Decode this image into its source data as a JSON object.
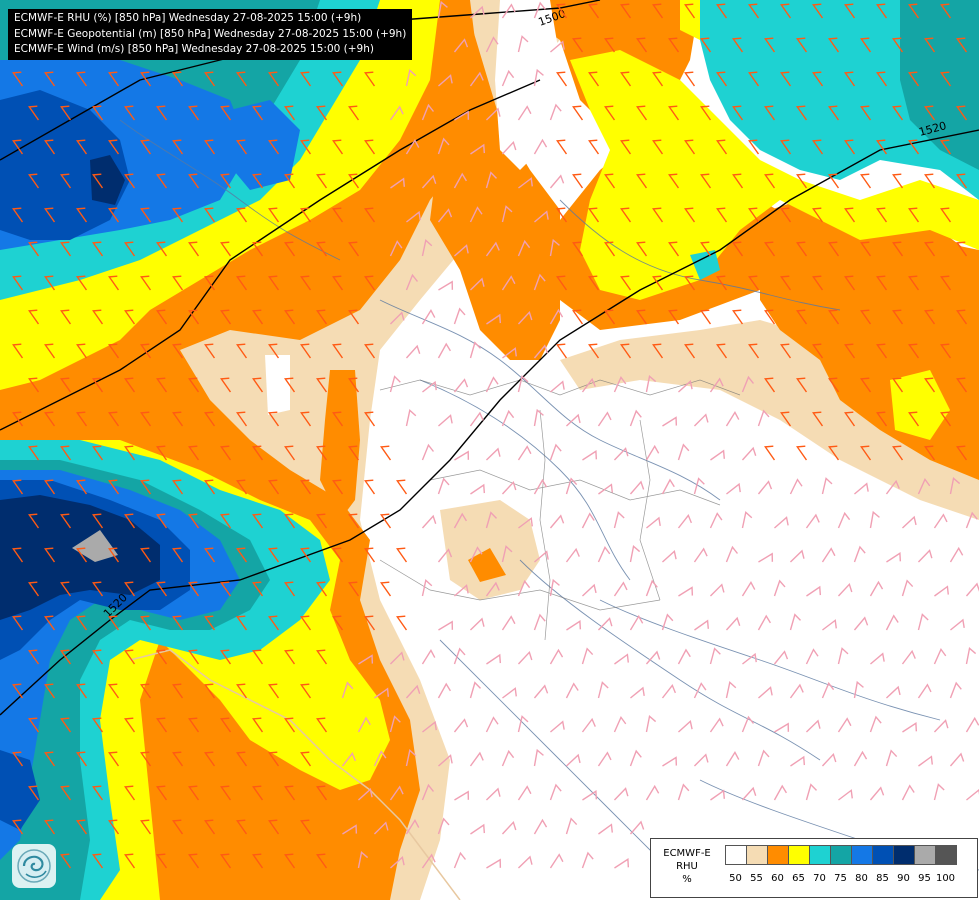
{
  "header": {
    "line1": "ECMWF-E RHU (%) [850 hPa] Wednesday 27-08-2025 15:00 (+9h)",
    "line2": "ECMWF-E Geopotential (m) [850 hPa] Wednesday 27-08-2025 15:00 (+9h)",
    "line3": "ECMWF-E Wind (m/s) [850 hPa] Wednesday 27-08-2025 15:00 (+9h)"
  },
  "contours": {
    "c1500": "1500",
    "c1520_east": "1520",
    "c1520_west": "1520"
  },
  "legend": {
    "model": "ECMWF-E",
    "variable": "RHU",
    "unit": "%",
    "bins": [
      {
        "label": "50",
        "color": "#ffffff"
      },
      {
        "label": "55",
        "color": "#f5dcb4"
      },
      {
        "label": "60",
        "color": "#ff8c00"
      },
      {
        "label": "65",
        "color": "#ffff00"
      },
      {
        "label": "70",
        "color": "#1ed2d2"
      },
      {
        "label": "75",
        "color": "#14a5a5"
      },
      {
        "label": "80",
        "color": "#1478e6"
      },
      {
        "label": "85",
        "color": "#0050b4"
      },
      {
        "label": "90",
        "color": "#002d6e"
      },
      {
        "label": "95",
        "color": "#aaaaaa"
      },
      {
        "label": "100",
        "color": "#555555"
      }
    ]
  },
  "colors": {
    "barb_humid": "#ff5a14",
    "barb_dry": "#f0a0b4",
    "contour": "#000000",
    "coast": "#e8c8a0",
    "rivers": "#5a78a0"
  },
  "logo": "ecmwf-logo"
}
